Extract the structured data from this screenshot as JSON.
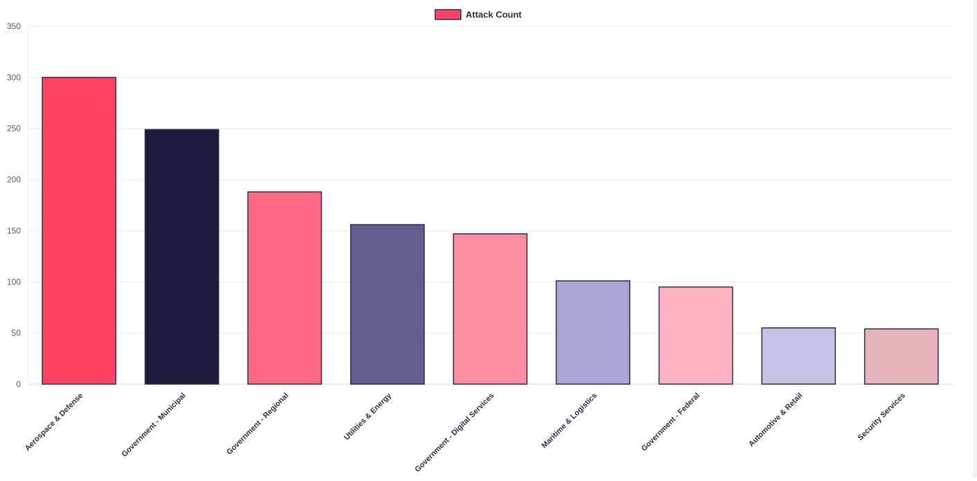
{
  "chart_data": {
    "type": "bar",
    "categories": [
      "Aerospace & Defense",
      "Government - Municipal",
      "Government - Regional",
      "Utilities & Energy",
      "Government - Digital Services",
      "Maritime & Logistics",
      "Government - Federal",
      "Automotive & Retail",
      "Security Services"
    ],
    "series": [
      {
        "name": "Attack Count",
        "values": [
          300,
          249,
          188,
          156,
          147,
          101,
          95,
          55,
          54
        ]
      }
    ],
    "colors": [
      "#ff4463",
      "#1e1b3c",
      "#ff6a82",
      "#625e8e",
      "#ff8da2",
      "#aaa7d7",
      "#ffb2c1",
      "#c5c3e3",
      "#e8b4bb"
    ],
    "legend_color": "#ff4463",
    "bar_border_color": "#2b2b4a",
    "ylim": [
      0,
      350
    ],
    "yticks": [
      "0",
      "50",
      "100",
      "150",
      "200",
      "250",
      "300",
      "350"
    ],
    "grid": true,
    "legend_position": "top-center",
    "title": "",
    "xlabel": "",
    "ylabel": ""
  }
}
